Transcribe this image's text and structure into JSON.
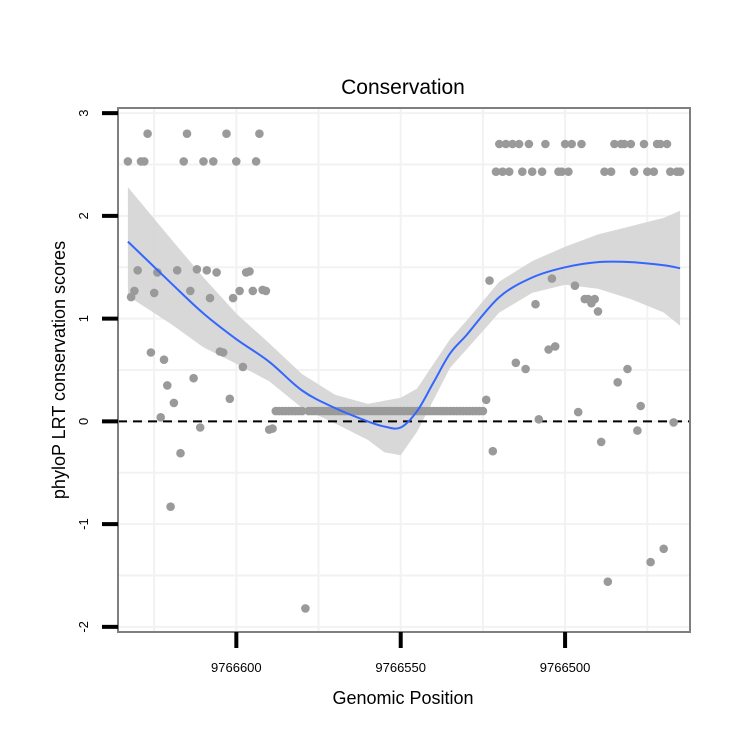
{
  "chart_data": {
    "type": "scatter",
    "title": "Conservation",
    "xlabel": "Genomic Position",
    "ylabel": "phyloP LRT conservation scores",
    "x_reversed": true,
    "xlim": [
      9766636,
      9766462
    ],
    "ylim": [
      -2.05,
      3.05
    ],
    "x_ticks": [
      9766600,
      9766550,
      9766500
    ],
    "x_tick_labels": [
      "9766600",
      "9766550",
      "9766500"
    ],
    "y_ticks": [
      -2,
      -1,
      0,
      1,
      2,
      3
    ],
    "y_tick_labels": [
      "-2",
      "-1",
      "0",
      "1",
      "2",
      "3"
    ],
    "reference_line": {
      "y": 0,
      "style": "dashed"
    },
    "grid": true,
    "colors": {
      "points": "#9a9a9a",
      "smooth_line": "#3366ff",
      "confidence_band": "#d4d4d4",
      "panel_border": "#7f7f7f",
      "grid": "#f2f2f2"
    },
    "points": [
      [
        9766633,
        2.53
      ],
      [
        9766632,
        1.21
      ],
      [
        9766631,
        1.27
      ],
      [
        9766630,
        1.47
      ],
      [
        9766629,
        2.53
      ],
      [
        9766628,
        2.53
      ],
      [
        9766627,
        2.8
      ],
      [
        9766626,
        0.67
      ],
      [
        9766625,
        1.25
      ],
      [
        9766624,
        1.45
      ],
      [
        9766623,
        0.04
      ],
      [
        9766622,
        0.6
      ],
      [
        9766621,
        0.35
      ],
      [
        9766620,
        -0.83
      ],
      [
        9766619,
        0.18
      ],
      [
        9766618,
        1.47
      ],
      [
        9766617,
        -0.31
      ],
      [
        9766616,
        2.53
      ],
      [
        9766615,
        2.8
      ],
      [
        9766614,
        1.27
      ],
      [
        9766613,
        0.42
      ],
      [
        9766612,
        1.48
      ],
      [
        9766611,
        -0.06
      ],
      [
        9766610,
        2.53
      ],
      [
        9766609,
        1.47
      ],
      [
        9766608,
        1.2
      ],
      [
        9766607,
        2.53
      ],
      [
        9766606,
        1.45
      ],
      [
        9766605,
        0.68
      ],
      [
        9766604,
        0.67
      ],
      [
        9766603,
        2.8
      ],
      [
        9766602,
        0.22
      ],
      [
        9766601,
        1.2
      ],
      [
        9766600,
        2.53
      ],
      [
        9766599,
        1.27
      ],
      [
        9766598,
        0.53
      ],
      [
        9766597,
        1.45
      ],
      [
        9766596,
        1.46
      ],
      [
        9766595,
        1.27
      ],
      [
        9766594,
        2.53
      ],
      [
        9766593,
        2.8
      ],
      [
        9766592,
        1.28
      ],
      [
        9766591,
        1.27
      ],
      [
        9766590,
        -0.08
      ],
      [
        9766589,
        -0.07
      ],
      [
        9766588,
        0.1
      ],
      [
        9766587,
        0.1
      ],
      [
        9766586,
        0.1
      ],
      [
        9766585,
        0.1
      ],
      [
        9766584,
        0.1
      ],
      [
        9766583,
        0.1
      ],
      [
        9766582,
        0.1
      ],
      [
        9766581,
        0.1
      ],
      [
        9766580,
        0.1
      ],
      [
        9766579,
        -1.82
      ],
      [
        9766578,
        0.1
      ],
      [
        9766577,
        0.1
      ],
      [
        9766576,
        0.1
      ],
      [
        9766575,
        0.1
      ],
      [
        9766574,
        0.1
      ],
      [
        9766573,
        0.1
      ],
      [
        9766572,
        0.1
      ],
      [
        9766571,
        0.1
      ],
      [
        9766570,
        0.1
      ],
      [
        9766569,
        0.1
      ],
      [
        9766568,
        0.1
      ],
      [
        9766567,
        0.1
      ],
      [
        9766566,
        0.1
      ],
      [
        9766565,
        0.1
      ],
      [
        9766564,
        0.1
      ],
      [
        9766563,
        0.1
      ],
      [
        9766562,
        0.1
      ],
      [
        9766561,
        0.1
      ],
      [
        9766560,
        0.1
      ],
      [
        9766559,
        0.1
      ],
      [
        9766558,
        0.1
      ],
      [
        9766557,
        0.1
      ],
      [
        9766556,
        0.1
      ],
      [
        9766555,
        0.1
      ],
      [
        9766554,
        0.1
      ],
      [
        9766553,
        0.1
      ],
      [
        9766552,
        0.1
      ],
      [
        9766551,
        0.1
      ],
      [
        9766550,
        0.1
      ],
      [
        9766549,
        0.1
      ],
      [
        9766548,
        0.1
      ],
      [
        9766547,
        0.1
      ],
      [
        9766546,
        0.1
      ],
      [
        9766545,
        0.1
      ],
      [
        9766544,
        0.1
      ],
      [
        9766543,
        0.1
      ],
      [
        9766542,
        0.1
      ],
      [
        9766541,
        0.1
      ],
      [
        9766540,
        0.1
      ],
      [
        9766539,
        0.1
      ],
      [
        9766538,
        0.1
      ],
      [
        9766537,
        0.1
      ],
      [
        9766536,
        0.1
      ],
      [
        9766535,
        0.1
      ],
      [
        9766534,
        0.1
      ],
      [
        9766533,
        0.1
      ],
      [
        9766532,
        0.1
      ],
      [
        9766531,
        0.1
      ],
      [
        9766530,
        0.1
      ],
      [
        9766529,
        0.1
      ],
      [
        9766528,
        0.1
      ],
      [
        9766527,
        0.1
      ],
      [
        9766526,
        0.1
      ],
      [
        9766525,
        0.1
      ],
      [
        9766524,
        0.21
      ],
      [
        9766523,
        1.37
      ],
      [
        9766522,
        -0.29
      ],
      [
        9766521,
        2.43
      ],
      [
        9766520,
        2.7
      ],
      [
        9766519,
        2.43
      ],
      [
        9766518,
        2.7
      ],
      [
        9766517,
        2.43
      ],
      [
        9766516,
        2.7
      ],
      [
        9766515,
        0.57
      ],
      [
        9766514,
        2.7
      ],
      [
        9766513,
        2.43
      ],
      [
        9766512,
        0.51
      ],
      [
        9766511,
        2.7
      ],
      [
        9766510,
        2.43
      ],
      [
        9766509,
        1.14
      ],
      [
        9766508,
        0.02
      ],
      [
        9766507,
        2.43
      ],
      [
        9766506,
        2.7
      ],
      [
        9766505,
        0.7
      ],
      [
        9766504,
        1.39
      ],
      [
        9766503,
        0.73
      ],
      [
        9766502,
        2.43
      ],
      [
        9766501,
        2.43
      ],
      [
        9766500,
        2.7
      ],
      [
        9766499,
        2.43
      ],
      [
        9766498,
        2.7
      ],
      [
        9766497,
        1.32
      ],
      [
        9766496,
        0.09
      ],
      [
        9766495,
        2.7
      ],
      [
        9766494,
        1.19
      ],
      [
        9766493,
        1.19
      ],
      [
        9766492,
        1.15
      ],
      [
        9766491,
        1.19
      ],
      [
        9766490,
        1.07
      ],
      [
        9766489,
        -0.2
      ],
      [
        9766488,
        2.43
      ],
      [
        9766487,
        -1.56
      ],
      [
        9766486,
        2.43
      ],
      [
        9766485,
        2.7
      ],
      [
        9766484,
        0.38
      ],
      [
        9766483,
        2.7
      ],
      [
        9766482,
        2.7
      ],
      [
        9766481,
        0.51
      ],
      [
        9766480,
        2.7
      ],
      [
        9766479,
        2.43
      ],
      [
        9766478,
        -0.09
      ],
      [
        9766477,
        0.15
      ],
      [
        9766476,
        2.7
      ],
      [
        9766475,
        2.43
      ],
      [
        9766474,
        -1.37
      ],
      [
        9766473,
        2.43
      ],
      [
        9766472,
        2.7
      ],
      [
        9766471,
        2.7
      ],
      [
        9766470,
        -1.24
      ],
      [
        9766469,
        2.7
      ],
      [
        9766468,
        2.43
      ],
      [
        9766467,
        -0.01
      ],
      [
        9766466,
        2.43
      ],
      [
        9766465,
        2.43
      ]
    ],
    "smooth": {
      "x": [
        9766633,
        9766620,
        9766610,
        9766600,
        9766590,
        9766580,
        9766570,
        9766560,
        9766555,
        9766550,
        9766545,
        9766540,
        9766535,
        9766530,
        9766520,
        9766510,
        9766500,
        9766490,
        9766480,
        9766470,
        9766465
      ],
      "y": [
        1.75,
        1.35,
        1.05,
        0.8,
        0.58,
        0.3,
        0.13,
        0.0,
        -0.05,
        -0.06,
        0.1,
        0.38,
        0.66,
        0.84,
        1.21,
        1.4,
        1.5,
        1.55,
        1.55,
        1.52,
        1.49
      ],
      "lower": [
        1.22,
        0.95,
        0.72,
        0.56,
        0.39,
        0.13,
        -0.02,
        -0.18,
        -0.3,
        -0.33,
        -0.1,
        0.21,
        0.52,
        0.7,
        1.06,
        1.25,
        1.33,
        1.29,
        1.19,
        1.06,
        0.93
      ],
      "upper": [
        2.28,
        1.78,
        1.4,
        1.05,
        0.76,
        0.46,
        0.26,
        0.17,
        0.2,
        0.23,
        0.32,
        0.56,
        0.8,
        0.98,
        1.36,
        1.56,
        1.7,
        1.82,
        1.9,
        1.98,
        2.05
      ]
    }
  }
}
